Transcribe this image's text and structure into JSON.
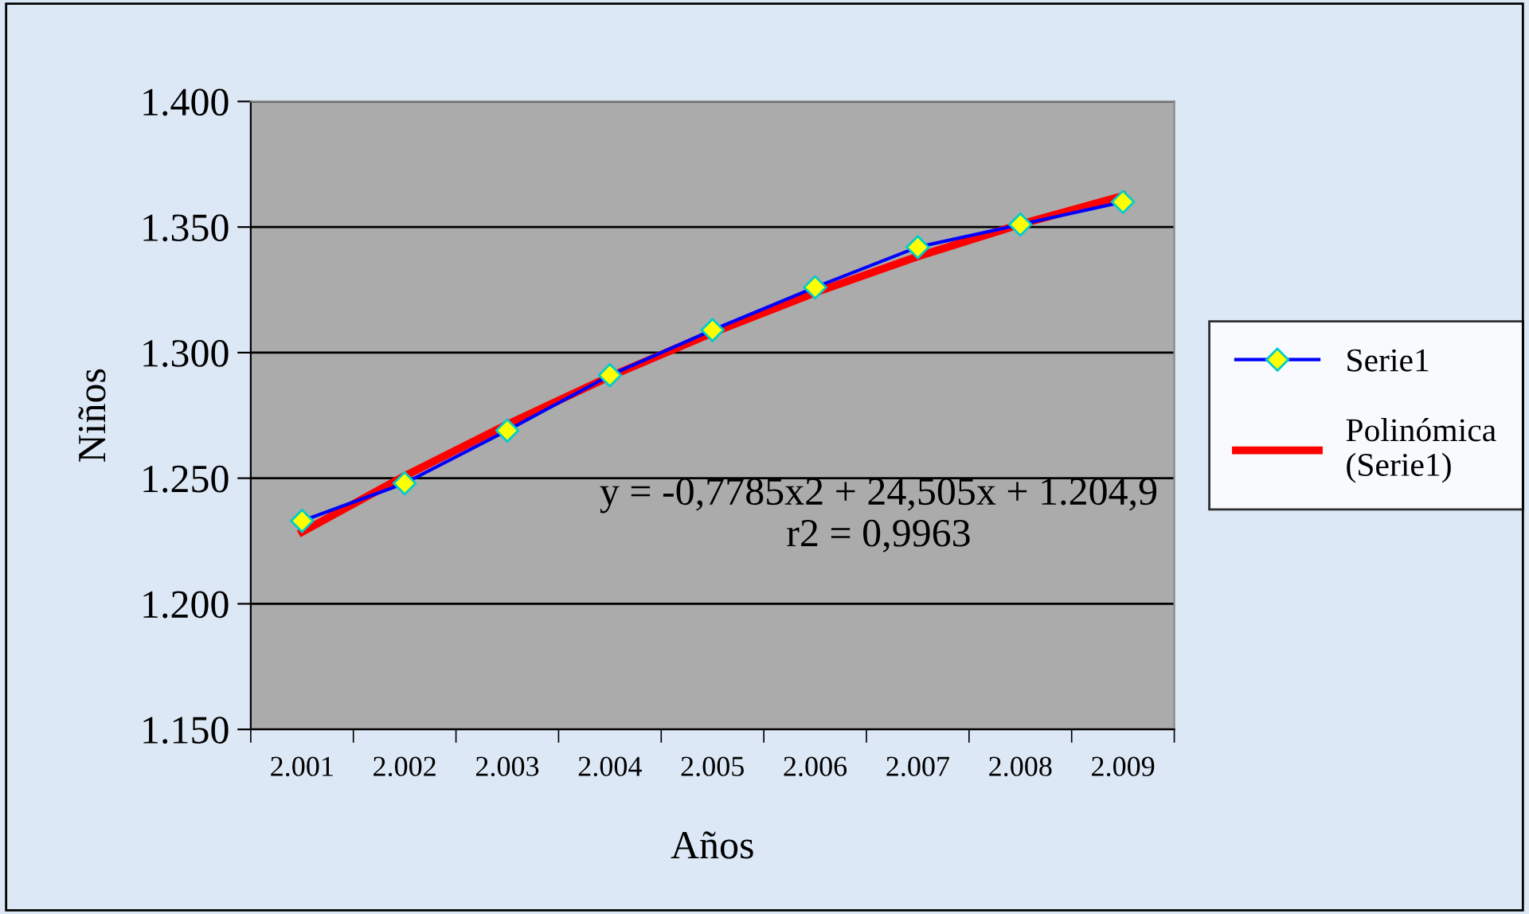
{
  "chart_data": {
    "type": "line",
    "xlabel": "Años",
    "ylabel": "Niños",
    "categories": [
      "2.001",
      "2.002",
      "2.003",
      "2.004",
      "2.005",
      "2.006",
      "2.007",
      "2.008",
      "2.009"
    ],
    "series": [
      {
        "name": "Serie1",
        "color": "#0000ff",
        "marker": "diamond",
        "values": [
          1233,
          1248,
          1269,
          1291,
          1309,
          1326,
          1342,
          1351,
          1360
        ]
      },
      {
        "name": "Polinómica\n(Serie1)",
        "color": "#ff0000",
        "marker": "none",
        "values": [
          1228.6,
          1250.9,
          1271.4,
          1290.5,
          1307.9,
          1323.9,
          1338.3,
          1351.1,
          1362.4
        ]
      }
    ],
    "ylim": [
      1150,
      1400
    ],
    "yticks": [
      {
        "value": 1150,
        "label": "1.150"
      },
      {
        "value": 1200,
        "label": "1.200"
      },
      {
        "value": 1250,
        "label": "1.250"
      },
      {
        "value": 1300,
        "label": "1.300"
      },
      {
        "value": 1350,
        "label": "1.350"
      },
      {
        "value": 1400,
        "label": "1.400"
      }
    ],
    "grid": "y",
    "legend": "right",
    "annotations": [
      "y = -0,7785x2 + 24,505x + 1.204,9",
      "r2 = 0,9963"
    ]
  }
}
